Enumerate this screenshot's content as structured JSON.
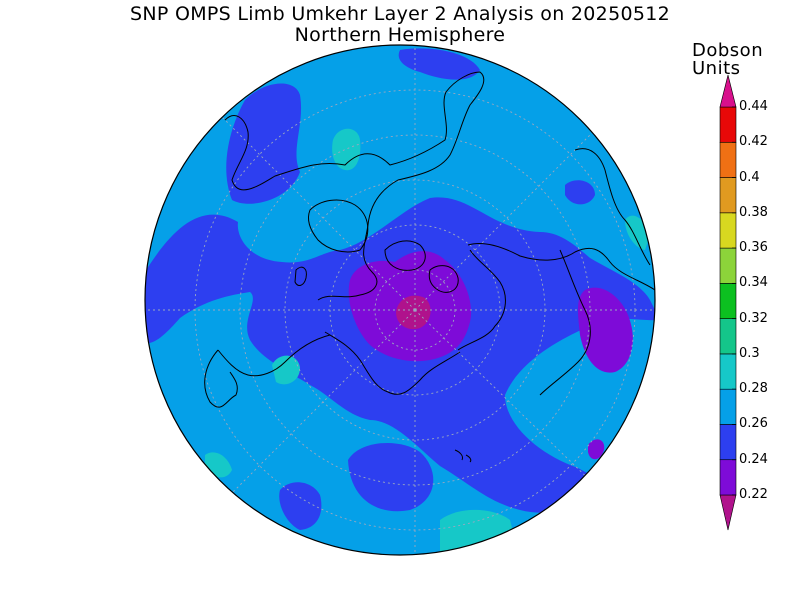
{
  "title": "SNP OMPS Limb Umkehr Layer 2 Analysis on 20250512",
  "subtitle": "Northern Hemisphere",
  "units": {
    "line1": "Dobson",
    "line2": "Units"
  },
  "colorbar": {
    "ticks": [
      "0.22",
      "0.24",
      "0.26",
      "0.28",
      "0.3",
      "0.32",
      "0.34",
      "0.36",
      "0.38",
      "0.4",
      "0.42",
      "0.44"
    ],
    "bins": [
      {
        "from": 0.2,
        "to": 0.22,
        "color": "#b0128c"
      },
      {
        "from": 0.22,
        "to": 0.24,
        "color": "#7e0bd8"
      },
      {
        "from": 0.24,
        "to": 0.26,
        "color": "#2d3ff0"
      },
      {
        "from": 0.26,
        "to": 0.28,
        "color": "#05a0e8"
      },
      {
        "from": 0.28,
        "to": 0.3,
        "color": "#16c8c8"
      },
      {
        "from": 0.3,
        "to": 0.32,
        "color": "#14c68a"
      },
      {
        "from": 0.32,
        "to": 0.34,
        "color": "#0cc020"
      },
      {
        "from": 0.34,
        "to": 0.36,
        "color": "#8cd43a"
      },
      {
        "from": 0.36,
        "to": 0.38,
        "color": "#d8d820"
      },
      {
        "from": 0.38,
        "to": 0.4,
        "color": "#e09a20"
      },
      {
        "from": 0.4,
        "to": 0.42,
        "color": "#f07014"
      },
      {
        "from": 0.42,
        "to": 0.44,
        "color": "#e80808"
      },
      {
        "from": 0.44,
        "to": 0.46,
        "color": "#d8108c"
      }
    ]
  },
  "map": {
    "projection": "north-polar-stereographic",
    "hemisphere": "Northern",
    "background_color": "#05a0e8",
    "coastline_color": "#000000",
    "grid_color": "#9aa8c0"
  }
}
